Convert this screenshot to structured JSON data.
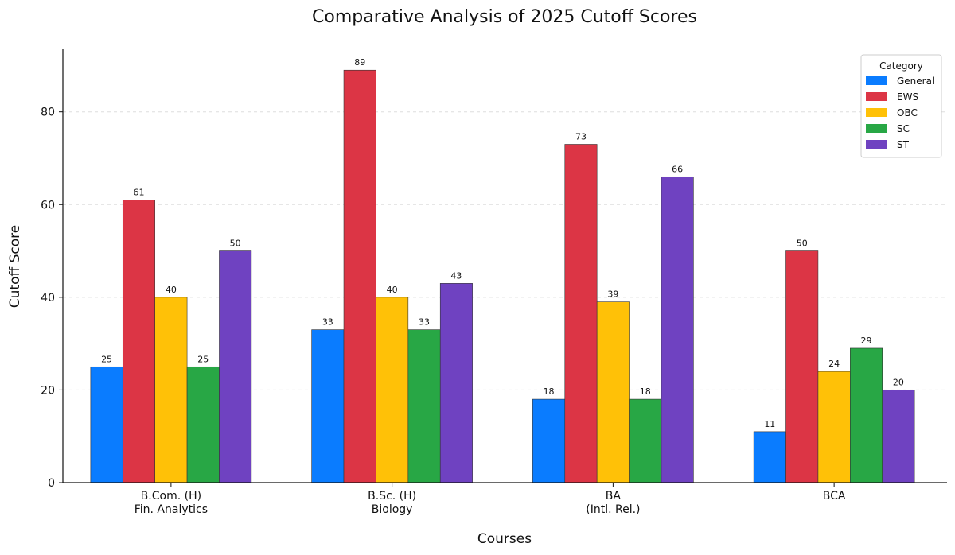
{
  "chart_data": {
    "type": "bar",
    "title": "Comparative Analysis of 2025 Cutoff Scores",
    "xlabel": "Courses",
    "ylabel": "Cutoff Score",
    "categories": [
      [
        "B.Com. (H)",
        "Fin. Analytics"
      ],
      [
        "B.Sc. (H)",
        "Biology"
      ],
      [
        "BA",
        "(Intl. Rel.)"
      ],
      [
        "BCA"
      ]
    ],
    "series": [
      {
        "name": "General",
        "color": "#0a7cff",
        "values": [
          25,
          33,
          18,
          11
        ]
      },
      {
        "name": "EWS",
        "color": "#dc3545",
        "values": [
          61,
          89,
          73,
          50
        ]
      },
      {
        "name": "OBC",
        "color": "#ffc107",
        "values": [
          40,
          40,
          39,
          24
        ]
      },
      {
        "name": "SC",
        "color": "#28a745",
        "values": [
          25,
          33,
          18,
          29
        ]
      },
      {
        "name": "ST",
        "color": "#6f42c1",
        "values": [
          50,
          43,
          66,
          20
        ]
      }
    ],
    "ylim": [
      0,
      93.5
    ],
    "yticks": [
      0,
      20,
      40,
      60,
      80
    ],
    "grid": "y-dashed",
    "legend": {
      "title": "Category",
      "position": "top-right"
    }
  }
}
